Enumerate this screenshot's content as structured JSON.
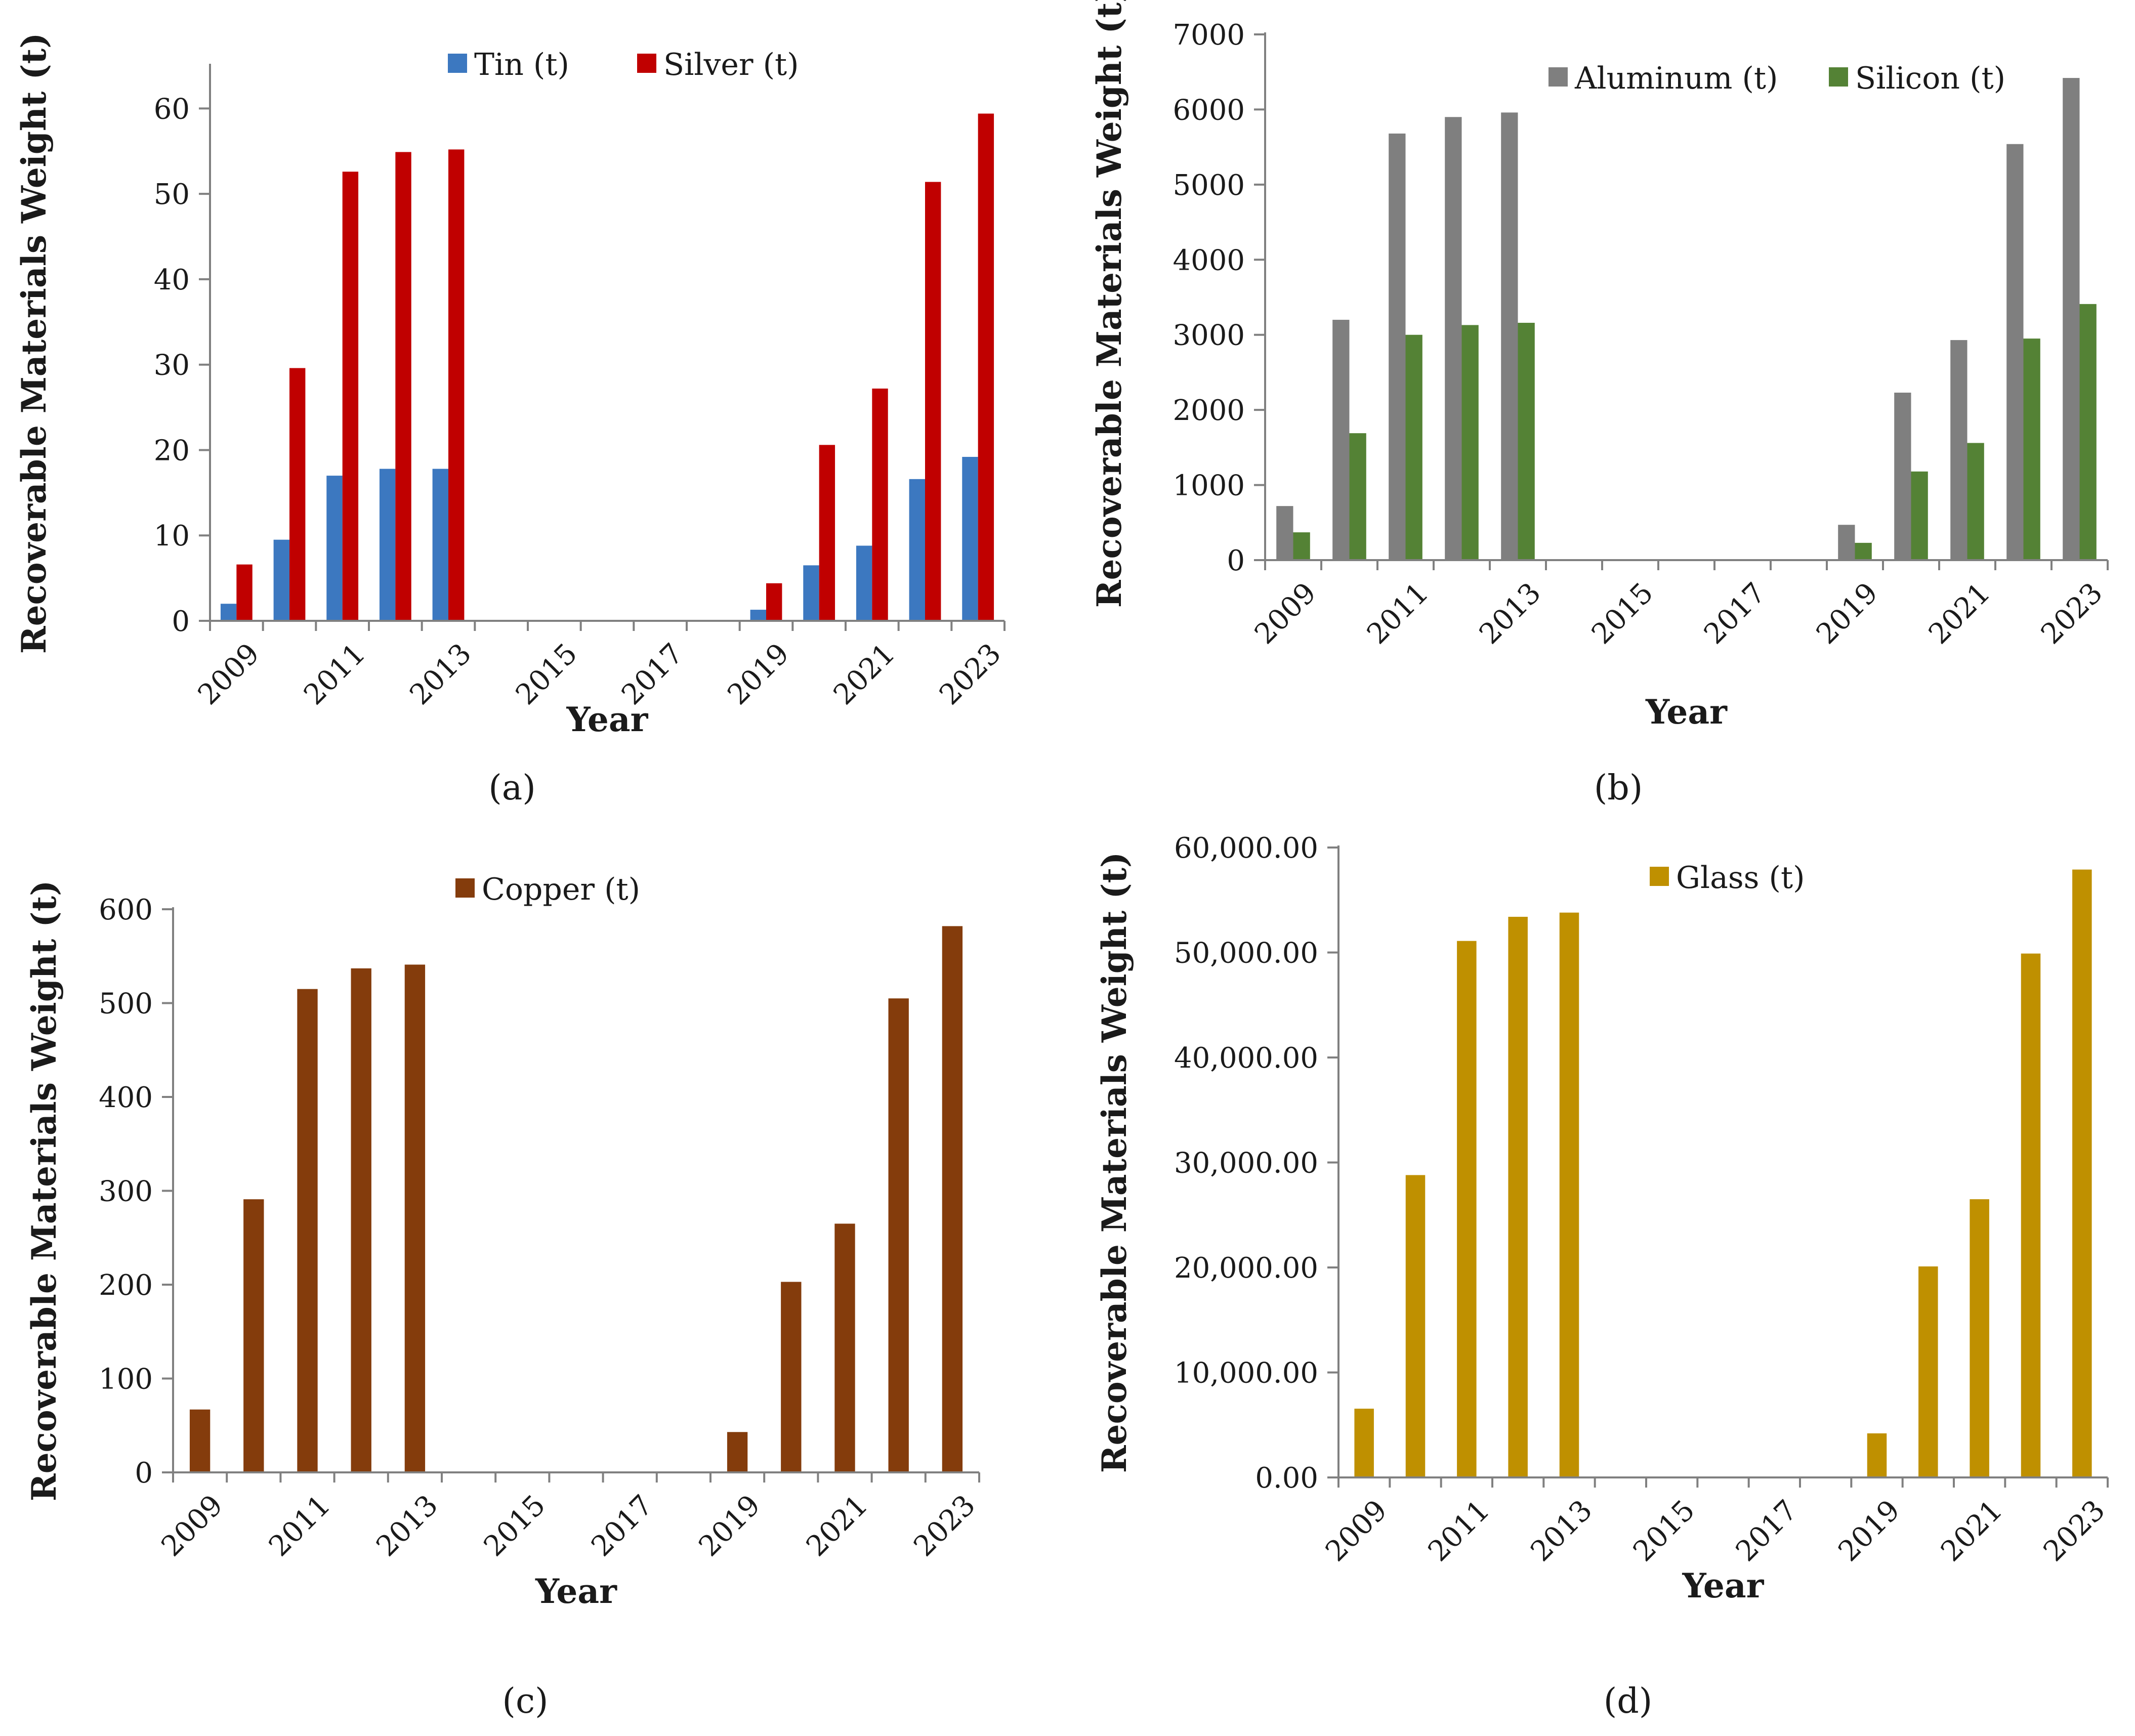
{
  "chart_data": [
    {
      "type": "bar",
      "panel": "(a)",
      "panel_letter": "a",
      "categories": [
        "2009",
        "2010",
        "2011",
        "2012",
        "2013",
        "2014",
        "2015",
        "2016",
        "2017",
        "2018",
        "2019",
        "2020",
        "2021",
        "2022",
        "2023"
      ],
      "tick_labels": [
        "2009",
        "2011",
        "2013",
        "2015",
        "2017",
        "2019",
        "2021",
        "2023"
      ],
      "series": [
        {
          "name": "Tin (t)",
          "color": "#3c78c0",
          "values": [
            2,
            9.5,
            17,
            17.8,
            17.8,
            0,
            0,
            0,
            0,
            0,
            1.3,
            6.5,
            8.8,
            16.6,
            19.2
          ]
        },
        {
          "name": "Silver (t)",
          "color": "#c00000",
          "values": [
            6.6,
            29.6,
            52.6,
            54.9,
            55.2,
            0,
            0,
            0,
            0,
            0,
            4.4,
            20.6,
            27.2,
            51.4,
            59.4
          ]
        }
      ],
      "yticks": [
        "0",
        "10",
        "20",
        "30",
        "40",
        "50",
        "60"
      ],
      "ylim": [
        0,
        65
      ],
      "xlabel": "Year",
      "ylabel": "Recoverable Materials Weight (t)"
    },
    {
      "type": "bar",
      "panel": "(b)",
      "panel_letter": "b",
      "categories": [
        "2009",
        "2010",
        "2011",
        "2012",
        "2013",
        "2014",
        "2015",
        "2016",
        "2017",
        "2018",
        "2019",
        "2020",
        "2021",
        "2022",
        "2023"
      ],
      "tick_labels": [
        "2009",
        "2011",
        "2013",
        "2015",
        "2017",
        "2019",
        "2021",
        "2023"
      ],
      "series": [
        {
          "name": "Aluminum (t)",
          "color": "#7f7f7f",
          "values": [
            720,
            3200,
            5680,
            5900,
            5960,
            0,
            0,
            0,
            0,
            0,
            470,
            2230,
            2930,
            5540,
            6420
          ]
        },
        {
          "name": "Silicon (t)",
          "color": "#548235",
          "values": [
            370,
            1690,
            3000,
            3130,
            3160,
            0,
            0,
            0,
            0,
            0,
            230,
            1180,
            1560,
            2950,
            3410
          ]
        }
      ],
      "yticks": [
        "0",
        "1000",
        "2000",
        "3000",
        "4000",
        "5000",
        "6000",
        "7000"
      ],
      "ylim": [
        0,
        7000
      ],
      "xlabel": "Year",
      "ylabel": "Recoverable Materials Weight (t)"
    },
    {
      "type": "bar",
      "panel": "(c)",
      "panel_letter": "c",
      "categories": [
        "2009",
        "2010",
        "2011",
        "2012",
        "2013",
        "2014",
        "2015",
        "2016",
        "2017",
        "2018",
        "2019",
        "2020",
        "2021",
        "2022",
        "2023"
      ],
      "tick_labels": [
        "2009",
        "2011",
        "2013",
        "2015",
        "2017",
        "2019",
        "2021",
        "2023"
      ],
      "series": [
        {
          "name": "Copper (t)",
          "color": "#843c0c",
          "values": [
            67,
            291,
            515,
            537,
            541,
            0,
            0,
            0,
            0,
            0,
            43,
            203,
            265,
            505,
            582
          ]
        }
      ],
      "yticks": [
        "0",
        "100",
        "200",
        "300",
        "400",
        "500",
        "600"
      ],
      "ylim": [
        0,
        600
      ],
      "xlabel": "Year",
      "ylabel": "Recoverable Materials Weight (t)"
    },
    {
      "type": "bar",
      "panel": "(d)",
      "panel_letter": "d",
      "categories": [
        "2009",
        "2010",
        "2011",
        "2012",
        "2013",
        "2014",
        "2015",
        "2016",
        "2017",
        "2018",
        "2019",
        "2020",
        "2021",
        "2022",
        "2023"
      ],
      "tick_labels": [
        "2009",
        "2011",
        "2013",
        "2015",
        "2017",
        "2019",
        "2021",
        "2023"
      ],
      "series": [
        {
          "name": "Glass (t)",
          "color": "#bf9000",
          "values": [
            6550,
            28800,
            51100,
            53400,
            53800,
            0,
            0,
            0,
            0,
            0,
            4200,
            20100,
            26500,
            49900,
            57900
          ]
        }
      ],
      "yticks": [
        "0.00",
        "10,000.00",
        "20,000.00",
        "30,000.00",
        "40,000.00",
        "50,000.00",
        "60,000.00"
      ],
      "ylim": [
        0,
        60000
      ],
      "xlabel": "Year",
      "ylabel": "Recoverable Materials Weight (t)"
    }
  ]
}
